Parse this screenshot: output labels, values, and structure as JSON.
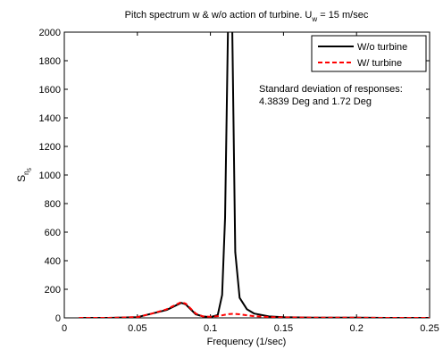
{
  "chart_data": {
    "type": "line",
    "title_main": "Pitch spectrum w & w/o action of turbine. U",
    "title_sub": "w",
    "title_tail": " = 15 m/sec",
    "xlabel": "Frequency (1/sec)",
    "ylabel_main": "S",
    "ylabel_sub1": "η",
    "ylabel_sub2": "5",
    "xlim": [
      0,
      0.25
    ],
    "ylim": [
      0,
      2000
    ],
    "xticks": [
      0,
      0.05,
      0.1,
      0.15,
      0.2,
      0.25
    ],
    "xtick_labels": [
      "0",
      "0.05",
      "0.1",
      "0.15",
      "0.2",
      "0.25"
    ],
    "yticks": [
      0,
      200,
      400,
      600,
      800,
      1000,
      1200,
      1400,
      1600,
      1800,
      2000
    ],
    "ytick_labels": [
      "0",
      "200",
      "400",
      "600",
      "800",
      "1000",
      "1200",
      "1400",
      "1600",
      "1800",
      "2000"
    ],
    "grid": false,
    "legend_position": "top-right",
    "annotation": [
      "Standard deviation of responses:",
      "4.3839 Deg and 1.72 Deg"
    ],
    "series": [
      {
        "name": "W/o turbine",
        "color": "#000000",
        "dash": "solid",
        "x": [
          0.01,
          0.03,
          0.05,
          0.06,
          0.07,
          0.075,
          0.08,
          0.083,
          0.086,
          0.09,
          0.095,
          0.1,
          0.105,
          0.108,
          0.11,
          0.112,
          0.1135,
          0.115,
          0.117,
          0.12,
          0.125,
          0.13,
          0.14,
          0.15,
          0.16,
          0.17,
          0.18,
          0.2,
          0.22,
          0.25
        ],
        "y": [
          0,
          0,
          5,
          30,
          55,
          80,
          105,
          95,
          65,
          25,
          10,
          5,
          20,
          160,
          700,
          2000,
          2400,
          2000,
          460,
          140,
          60,
          30,
          10,
          5,
          3,
          2,
          1,
          1,
          0,
          0
        ]
      },
      {
        "name": "W/ turbine",
        "color": "#ff0000",
        "dash": "dashed",
        "x": [
          0.01,
          0.03,
          0.05,
          0.06,
          0.07,
          0.075,
          0.08,
          0.083,
          0.086,
          0.09,
          0.095,
          0.1,
          0.105,
          0.11,
          0.113,
          0.116,
          0.12,
          0.125,
          0.13,
          0.14,
          0.15,
          0.17,
          0.2,
          0.22,
          0.25
        ],
        "y": [
          0,
          0,
          5,
          30,
          60,
          85,
          110,
          100,
          70,
          30,
          10,
          8,
          12,
          22,
          27,
          28,
          25,
          18,
          12,
          6,
          3,
          2,
          1,
          0,
          0
        ]
      }
    ]
  }
}
